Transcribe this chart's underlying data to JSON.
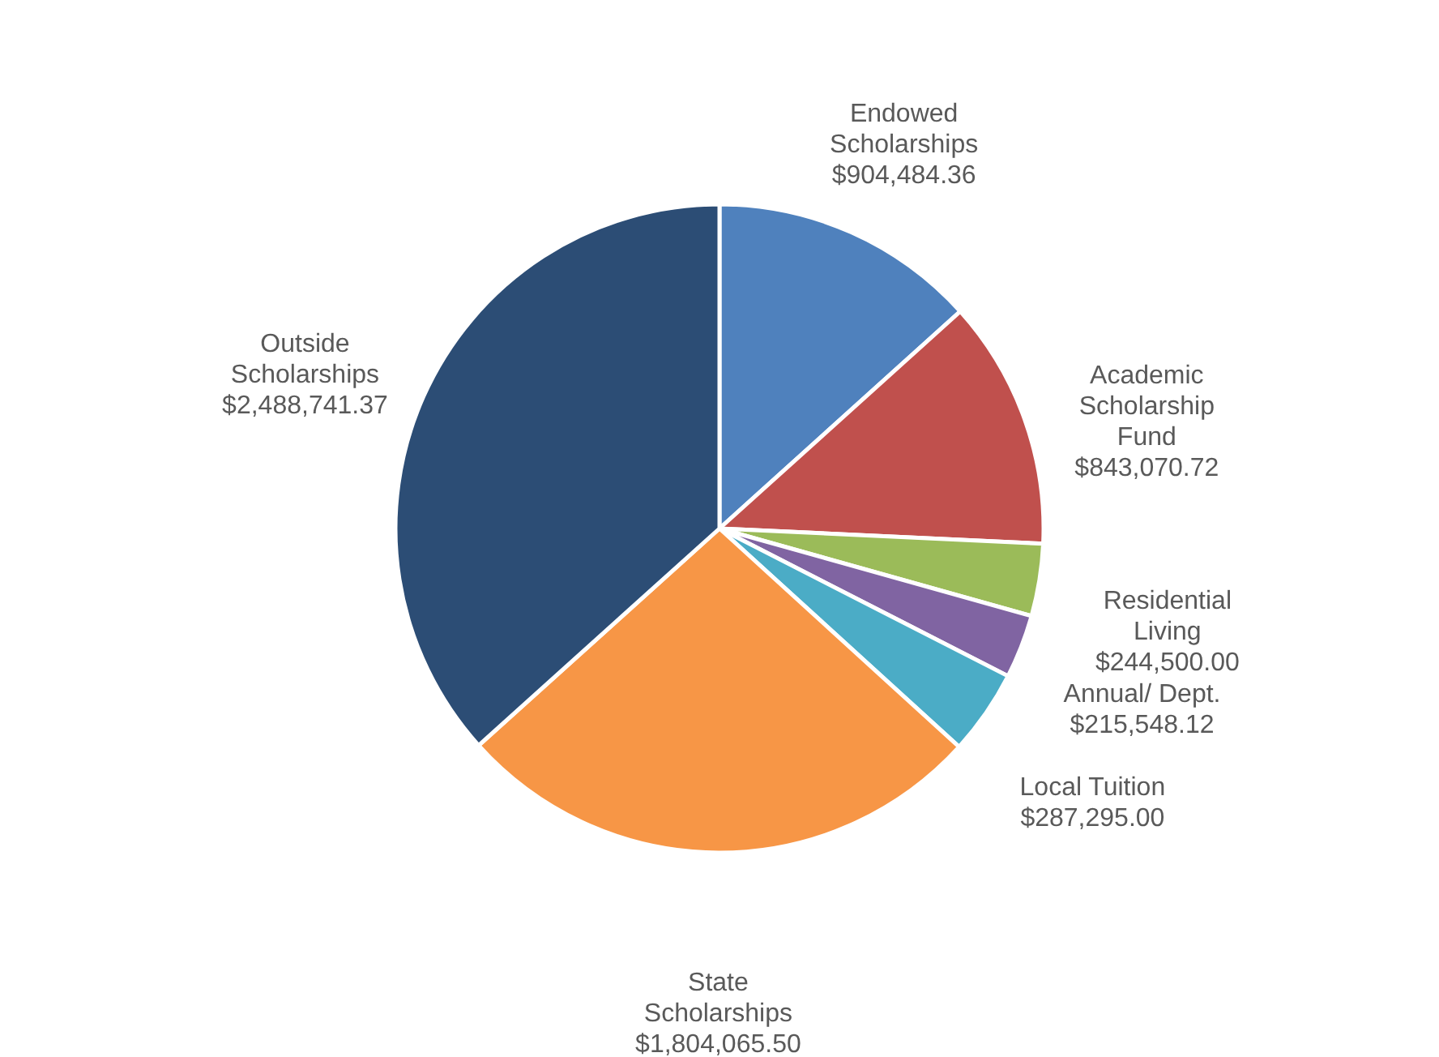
{
  "chart_data": {
    "type": "pie",
    "categories": [
      "Endowed Scholarships",
      "Academic Scholarship Fund",
      "Residential Living",
      "Annual/ Dept.",
      "Local Tuition",
      "State Scholarships",
      "Outside Scholarships"
    ],
    "values": [
      904484.36,
      843070.72,
      244500.0,
      215548.12,
      287295.0,
      1804065.5,
      2488741.37
    ],
    "value_labels": [
      "$904,484.36",
      "$843,070.72",
      "$244,500.00",
      "$215,548.12",
      "$287,295.00",
      "$1,804,065.50",
      "$2,488,741.37"
    ],
    "colors": [
      "#4f81bd",
      "#c0504d",
      "#9bbb59",
      "#8064a2",
      "#4bacc6",
      "#f79646",
      "#2c4d75"
    ],
    "legend": false
  }
}
